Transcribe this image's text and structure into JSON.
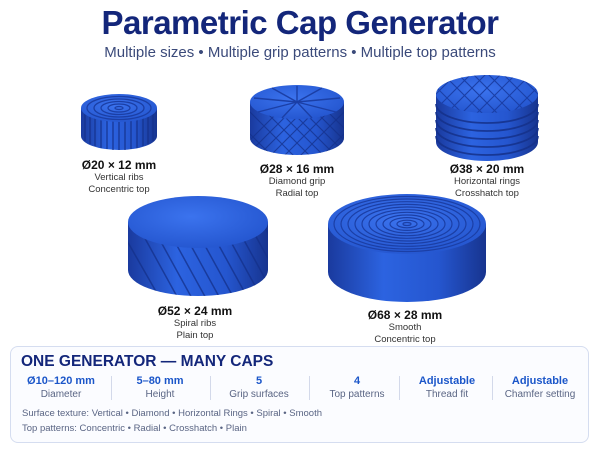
{
  "header": {
    "title": "Parametric Cap Generator",
    "subtitle": "Multiple sizes • Multiple grip patterns • Multiple top patterns"
  },
  "colors": {
    "cap_blue": "#2a5bd7",
    "cap_dark": "#1c3fa8",
    "title": "#13267a",
    "accent": "#1b56c9"
  },
  "caps": [
    {
      "size": "Ø20 × 12 mm",
      "grip": "Vertical ribs",
      "top": "Concentric top"
    },
    {
      "size": "Ø28 × 16 mm",
      "grip": "Diamond grip",
      "top": "Radial top"
    },
    {
      "size": "Ø38 × 20 mm",
      "grip": "Horizontal rings",
      "top": "Crosshatch top"
    },
    {
      "size": "Ø52 × 24 mm",
      "grip": "Spiral ribs",
      "top": "Plain top"
    },
    {
      "size": "Ø68 × 28 mm",
      "grip": "Smooth",
      "top": "Concentric top"
    }
  ],
  "panel": {
    "title": "ONE GENERATOR — MANY CAPS",
    "stats": [
      {
        "value": "Ø10–120 mm",
        "label": "Diameter"
      },
      {
        "value": "5–80 mm",
        "label": "Height"
      },
      {
        "value": "5",
        "label": "Grip surfaces"
      },
      {
        "value": "4",
        "label": "Top patterns"
      },
      {
        "value": "Adjustable",
        "label": "Thread fit"
      },
      {
        "value": "Adjustable",
        "label": "Chamfer setting"
      }
    ],
    "surface_textures": "Surface texture:  Vertical • Diamond • Horizontal Rings • Spiral • Smooth",
    "top_patterns": "Top patterns: Concentric • Radial • Crosshatch • Plain"
  }
}
